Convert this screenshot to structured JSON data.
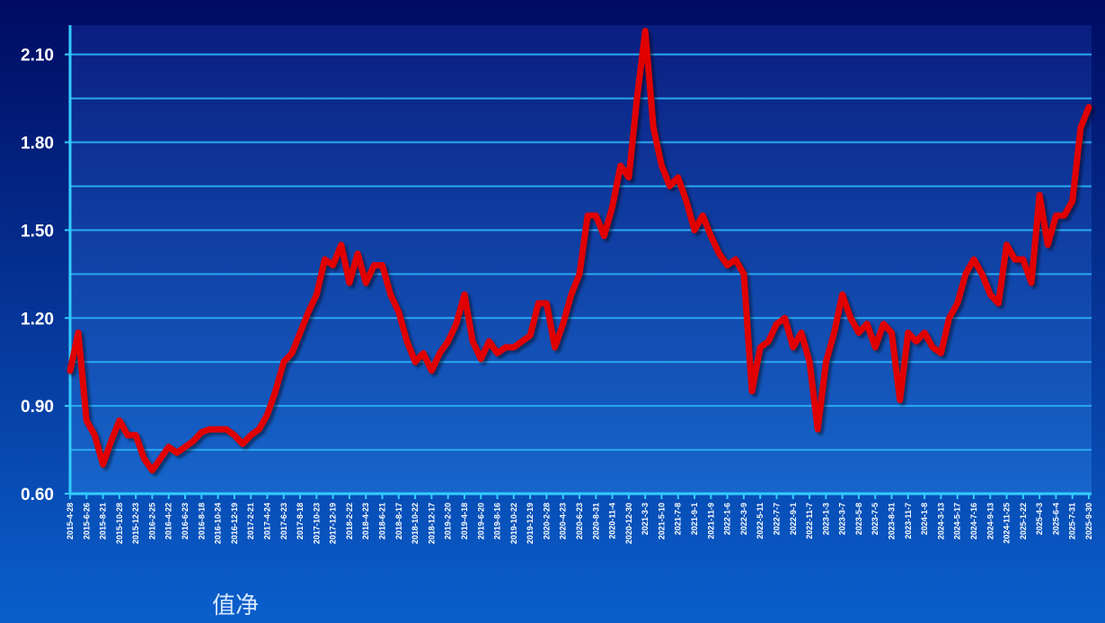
{
  "chart_data": {
    "type": "line",
    "categories": [
      "2015-4-28",
      null,
      "2015-6-26",
      null,
      "2015-8-21",
      null,
      "2015-10-28",
      null,
      "2015-12-23",
      null,
      "2016-2-25",
      null,
      "2016-4-22",
      null,
      "2016-6-23",
      null,
      "2016-8-18",
      null,
      "2016-10-24",
      null,
      "2016-12-19",
      null,
      "2017-2-21",
      null,
      "2017-4-24",
      null,
      "2017-6-23",
      null,
      "2017-8-18",
      null,
      "2017-10-23",
      null,
      "2017-12-19",
      null,
      "2018-2-22",
      null,
      "2018-4-23",
      null,
      "2018-6-21",
      null,
      "2018-8-17",
      null,
      "2018-10-22",
      null,
      "2018-12-17",
      null,
      "2019-2-20",
      null,
      "2019-4-18",
      null,
      "2019-6-20",
      null,
      "2019-8-16",
      null,
      "2019-10-22",
      null,
      "2019-12-19",
      null,
      "2020-2-28",
      null,
      "2020-4-23",
      null,
      "2020-6-23",
      null,
      "2020-8-31",
      null,
      "2020-11-4",
      null,
      "2020-12-30",
      null,
      "2021-3-3",
      null,
      "2021-5-10",
      null,
      "2021-7-8",
      null,
      "2021-9-1",
      null,
      "2021-11-9",
      null,
      "2022-1-6",
      null,
      "2022-3-9",
      null,
      "2022-5-11",
      null,
      "2022-7-7",
      null,
      "2022-9-1",
      null,
      "2022-11-7",
      null,
      "2023-1-3",
      null,
      "2023-3-7",
      null,
      "2023-5-8",
      null,
      "2023-7-5",
      null,
      "2023-8-31",
      null,
      "2023-11-7",
      null,
      "2024-1-8",
      null,
      "2024-3-13",
      null,
      "2024-5-17",
      null,
      "2024-7-16",
      null,
      "2024-9-13",
      null,
      "2024-11-25",
      null,
      "2025-1-22",
      null,
      "2025-4-3",
      null,
      "2025-6-4",
      null,
      "2025-7-31",
      null,
      "2025-9-30"
    ],
    "series": [
      {
        "name": "值净",
        "color": "#e00000",
        "values": [
          1.02,
          1.15,
          0.85,
          0.8,
          0.7,
          0.78,
          0.85,
          0.8,
          0.8,
          0.72,
          0.68,
          0.72,
          0.76,
          0.74,
          0.76,
          0.78,
          0.81,
          0.82,
          0.82,
          0.82,
          0.8,
          0.77,
          0.8,
          0.82,
          0.87,
          0.95,
          1.05,
          1.08,
          1.15,
          1.22,
          1.28,
          1.4,
          1.38,
          1.45,
          1.32,
          1.42,
          1.32,
          1.38,
          1.38,
          1.28,
          1.22,
          1.12,
          1.05,
          1.08,
          1.02,
          1.08,
          1.12,
          1.18,
          1.28,
          1.12,
          1.06,
          1.12,
          1.08,
          1.1,
          1.1,
          1.12,
          1.14,
          1.25,
          1.25,
          1.1,
          1.18,
          1.28,
          1.35,
          1.55,
          1.55,
          1.48,
          1.58,
          1.72,
          1.68,
          1.95,
          2.18,
          1.85,
          1.72,
          1.65,
          1.68,
          1.6,
          1.5,
          1.55,
          1.48,
          1.42,
          1.38,
          1.4,
          1.35,
          0.95,
          1.1,
          1.12,
          1.18,
          1.2,
          1.1,
          1.15,
          1.05,
          0.82,
          1.05,
          1.15,
          1.28,
          1.2,
          1.15,
          1.18,
          1.1,
          1.18,
          1.15,
          0.92,
          1.15,
          1.12,
          1.15,
          1.1,
          1.08,
          1.2,
          1.25,
          1.35,
          1.4,
          1.35,
          1.28,
          1.25,
          1.45,
          1.4,
          1.4,
          1.32,
          1.62,
          1.45,
          1.55,
          1.55,
          1.6,
          1.85,
          1.92
        ]
      }
    ],
    "ylim": [
      0.6,
      2.2
    ],
    "yticks": [
      {
        "value": 0.6,
        "label": "0.60"
      },
      {
        "value": 0.9,
        "label": "0.90"
      },
      {
        "value": 1.2,
        "label": "1.20"
      },
      {
        "value": 1.5,
        "label": "1.50"
      },
      {
        "value": 1.8,
        "label": "1.80"
      },
      {
        "value": 2.1,
        "label": "2.10"
      }
    ],
    "minor_yticks": [
      0.75,
      1.05,
      1.35,
      1.65,
      1.95
    ],
    "grid": true,
    "legend": "bottom-left"
  }
}
